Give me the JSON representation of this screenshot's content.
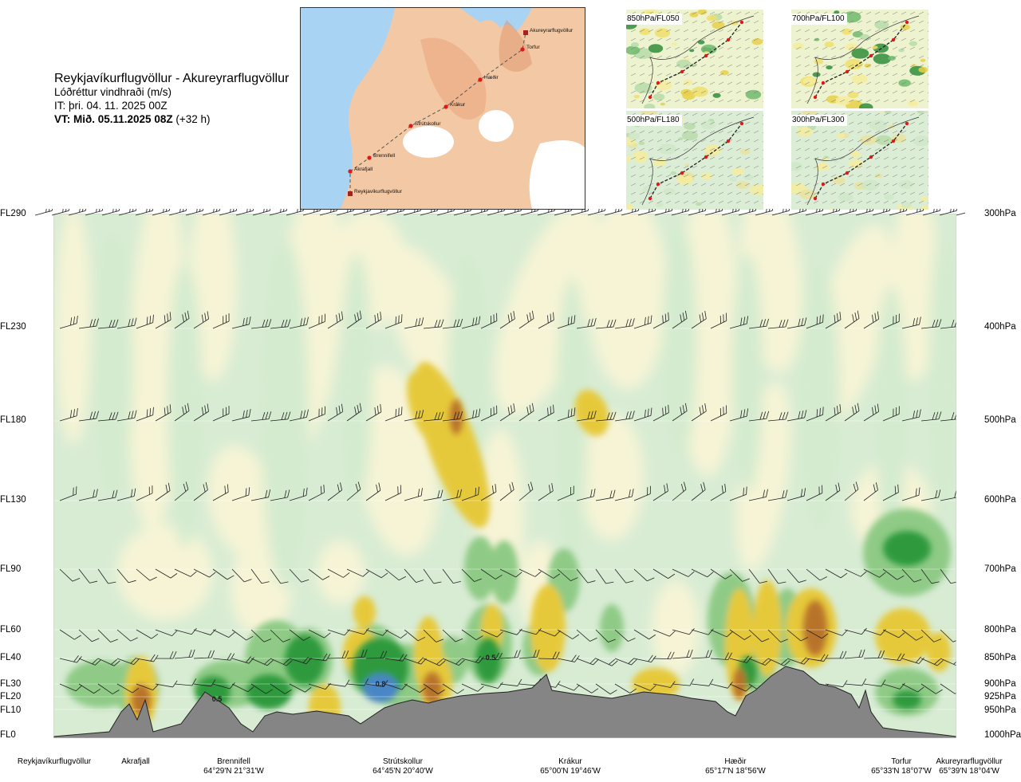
{
  "title": {
    "route": "Reykjavíkurflugvöllur - Akureyrarflugvöllur",
    "parameter": "Lóðréttur vindhraði (m/s)",
    "issue_time": "IT: þri. 04. 11. 2025 00Z",
    "valid_time_label": "VT: Mið. 05.11.2025 08Z",
    "valid_time_offset": "(+32 h)"
  },
  "route_map": {
    "stations": [
      "Akureyrarflugvöllur",
      "Torfur",
      "Hæðir",
      "Krákur",
      "Strútskollur",
      "Brennifell",
      "Akrafjall",
      "Reykjavíkurflugvöllur"
    ]
  },
  "level_maps": [
    {
      "label": "850hPa/FL050"
    },
    {
      "label": "700hPa/FL100"
    },
    {
      "label": "500hPa/FL180"
    },
    {
      "label": "300hPa/FL300"
    }
  ],
  "flight_levels": [
    "FL290",
    "FL230",
    "FL180",
    "FL130",
    "FL90",
    "FL60",
    "FL40",
    "FL30",
    "FL20",
    "FL10",
    "FL0"
  ],
  "pressure_levels": [
    "300hPa",
    "400hPa",
    "500hPa",
    "600hPa",
    "700hPa",
    "800hPa",
    "850hPa",
    "900hPa",
    "925hPa",
    "950hPa",
    "1000hPa"
  ],
  "contour_labels": [
    "0.5",
    "0.8",
    "0.5"
  ],
  "waypoints": [
    {
      "name": "Reykjavíkurflugvöllur",
      "coord": ""
    },
    {
      "name": "Akrafjall",
      "coord": ""
    },
    {
      "name": "Brennifell",
      "coord": "64°29'N 21°31'W"
    },
    {
      "name": "Strútskollur",
      "coord": "64°45'N 20°40'W"
    },
    {
      "name": "Krákur",
      "coord": "65°00'N 19°46'W"
    },
    {
      "name": "Hæðir",
      "coord": "65°17'N 18°56'W"
    },
    {
      "name": "Torfur",
      "coord": "65°33'N 18°07'W"
    },
    {
      "name": "Akureyrarflugvöllur",
      "coord": "65°39'N 18°04'W"
    }
  ],
  "colors": {
    "strong_down": "#b8732a",
    "down": "#e6c93a",
    "weak_down": "#f4eeae",
    "neutral": "#f7f4d6",
    "weak_up": "#d4ebcf",
    "up": "#8fcb86",
    "strong_up": "#2e9a3c",
    "max_up": "#4a86c6",
    "terrain": "#858585",
    "sea": "#a9d3f2",
    "land": "#f2c6a2"
  }
}
